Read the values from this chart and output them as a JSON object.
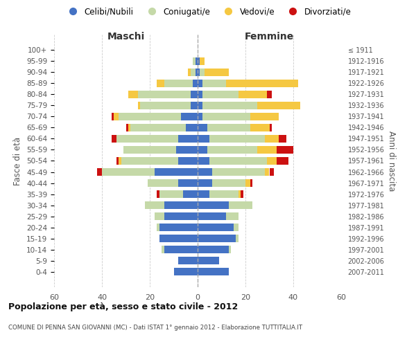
{
  "age_groups": [
    "100+",
    "95-99",
    "90-94",
    "85-89",
    "80-84",
    "75-79",
    "70-74",
    "65-69",
    "60-64",
    "55-59",
    "50-54",
    "45-49",
    "40-44",
    "35-39",
    "30-34",
    "25-29",
    "20-24",
    "15-19",
    "10-14",
    "5-9",
    "0-4"
  ],
  "birth_years": [
    "≤ 1911",
    "1912-1916",
    "1917-1921",
    "1922-1926",
    "1927-1931",
    "1932-1936",
    "1937-1941",
    "1942-1946",
    "1947-1951",
    "1952-1956",
    "1957-1961",
    "1962-1966",
    "1967-1971",
    "1972-1976",
    "1977-1981",
    "1982-1986",
    "1987-1991",
    "1992-1996",
    "1997-2001",
    "2002-2006",
    "2007-2011"
  ],
  "maschi": {
    "celibi": [
      0,
      1,
      1,
      2,
      3,
      3,
      7,
      5,
      8,
      9,
      8,
      18,
      8,
      6,
      14,
      14,
      16,
      16,
      14,
      8,
      10
    ],
    "coniugati": [
      0,
      1,
      2,
      12,
      22,
      21,
      26,
      23,
      26,
      22,
      24,
      22,
      13,
      10,
      8,
      4,
      1,
      0,
      1,
      0,
      0
    ],
    "vedovi": [
      0,
      0,
      1,
      3,
      4,
      1,
      2,
      1,
      0,
      0,
      1,
      0,
      0,
      0,
      0,
      0,
      0,
      0,
      0,
      0,
      0
    ],
    "divorziati": [
      0,
      0,
      0,
      0,
      0,
      0,
      1,
      1,
      2,
      0,
      1,
      2,
      0,
      1,
      0,
      0,
      0,
      0,
      0,
      0,
      0
    ]
  },
  "femmine": {
    "nubili": [
      0,
      1,
      1,
      2,
      2,
      2,
      2,
      4,
      5,
      4,
      5,
      6,
      6,
      5,
      13,
      12,
      15,
      16,
      13,
      9,
      13
    ],
    "coniugate": [
      0,
      0,
      2,
      10,
      15,
      23,
      20,
      18,
      23,
      21,
      24,
      22,
      14,
      12,
      10,
      5,
      2,
      1,
      1,
      0,
      0
    ],
    "vedove": [
      0,
      2,
      10,
      30,
      12,
      18,
      12,
      8,
      6,
      8,
      4,
      2,
      2,
      1,
      0,
      0,
      0,
      0,
      0,
      0,
      0
    ],
    "divorziate": [
      0,
      0,
      0,
      0,
      2,
      0,
      0,
      1,
      3,
      7,
      5,
      2,
      1,
      1,
      0,
      0,
      0,
      0,
      0,
      0,
      0
    ]
  },
  "colors": {
    "celibi": "#4472C4",
    "coniugati": "#C5D9A8",
    "vedovi": "#F5C842",
    "divorziati": "#CC1111"
  },
  "xlim": 60,
  "title": "Popolazione per età, sesso e stato civile - 2012",
  "subtitle": "COMUNE DI PENNA SAN GIOVANNI (MC) - Dati ISTAT 1° gennaio 2012 - Elaborazione TUTTITALIA.IT",
  "ylabel_left": "Fasce di età",
  "ylabel_right": "Anni di nascita"
}
